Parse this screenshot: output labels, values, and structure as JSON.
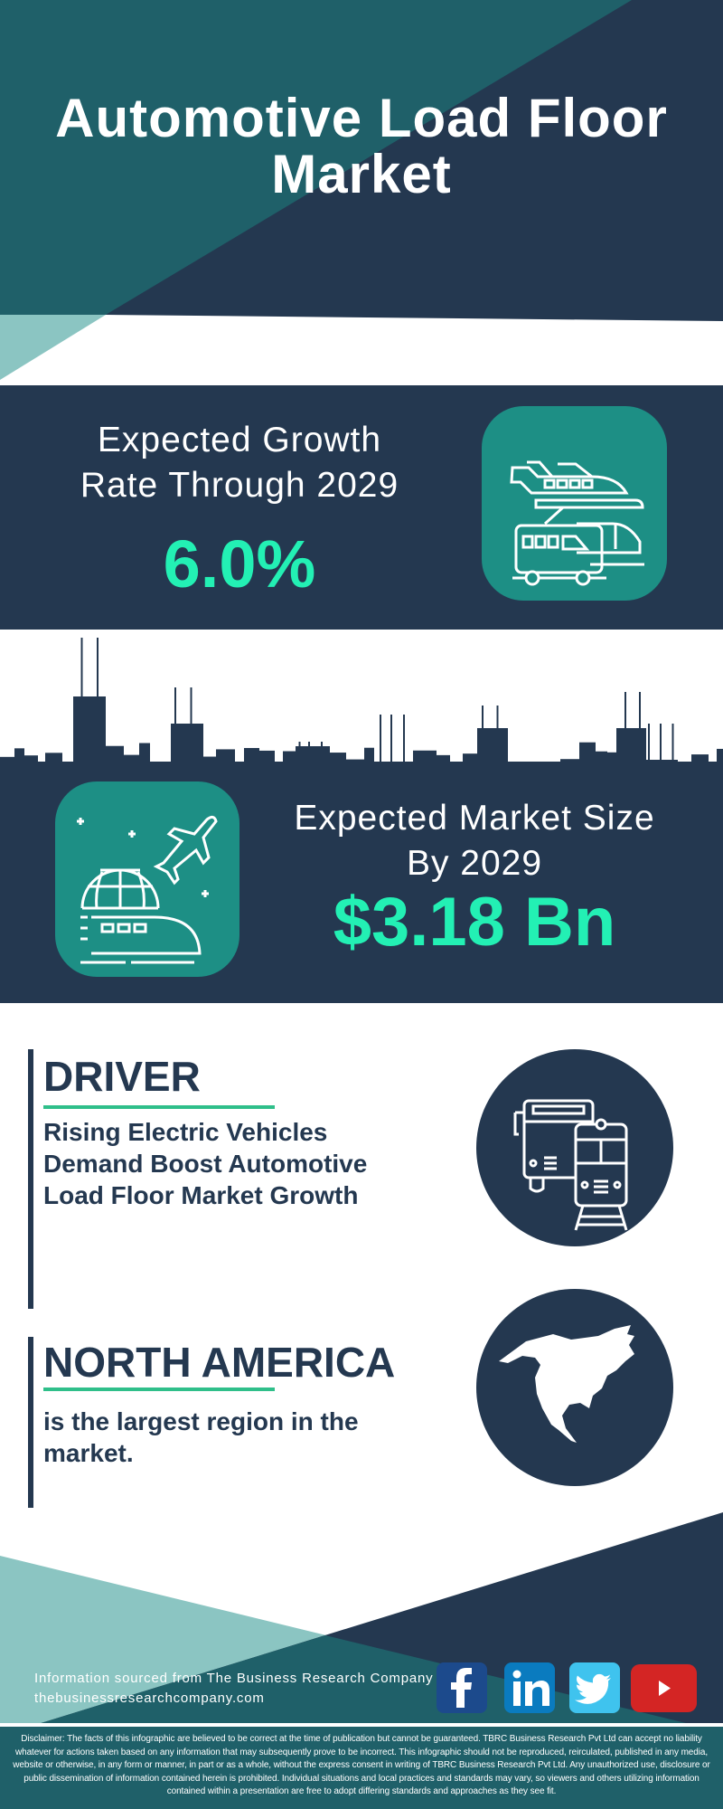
{
  "header": {
    "title_line1": "Automotive Load Floor",
    "title_line2": "Market"
  },
  "growth": {
    "label_line1": "Expected Growth",
    "label_line2": "Rate Through 2029",
    "value": "6.0%",
    "icon": "plane-train-bus-icon"
  },
  "market_size": {
    "label_line1": "Expected Market Size",
    "label_line2": "By 2029",
    "value": "$3.18 Bn",
    "icon": "globe-plane-train-icon"
  },
  "driver": {
    "heading": "DRIVER",
    "text_line1": "Rising Electric Vehicles",
    "text_line2": "Demand Boost Automotive",
    "text_line3": "Load Floor Market Growth",
    "icon": "bus-train-icon"
  },
  "region": {
    "heading": "NORTH AMERICA",
    "text_line1": "is the largest region in the",
    "text_line2": "market.",
    "icon": "north-america-map-icon"
  },
  "footer": {
    "source": "Information sourced from The Business Research Company",
    "website": "thebusinessresearchcompany.com",
    "social": [
      {
        "name": "facebook",
        "glyph": "f",
        "color": "#1c4a8c"
      },
      {
        "name": "linkedin",
        "glyph": "in",
        "color": "#0a7bbf"
      },
      {
        "name": "twitter",
        "glyph": "twitter",
        "color": "#3fc3ee"
      },
      {
        "name": "youtube",
        "glyph": "play",
        "color": "#d42524"
      }
    ],
    "disclaimer": "Disclaimer: The facts of this infographic are believed to be correct at the time of publication but cannot be guaranteed. TBRC Business Research Pvt Ltd can accept no liability whatever for actions taken based on any information that may subsequently prove to be incorrect. This infographic should not be reproduced, reirculated, published in any media, website or otherwise, in any form or manner, in part or as a whole, without the express consent in writing of TBRC Business Research Pvt Ltd. Any unauthorized use, disclosure or public dissemination of information contained herein is prohibited. Individual situations and local practices and standards may vary, so viewers and others utilizing information contained within a presentation are free to adopt differing standards and approaches as they see fit."
  },
  "colors": {
    "navy": "#243850",
    "teal": "#1f6069",
    "light_teal": "#8bc5c2",
    "icon_teal": "#1d8f85",
    "accent_green": "#23f0b4"
  }
}
